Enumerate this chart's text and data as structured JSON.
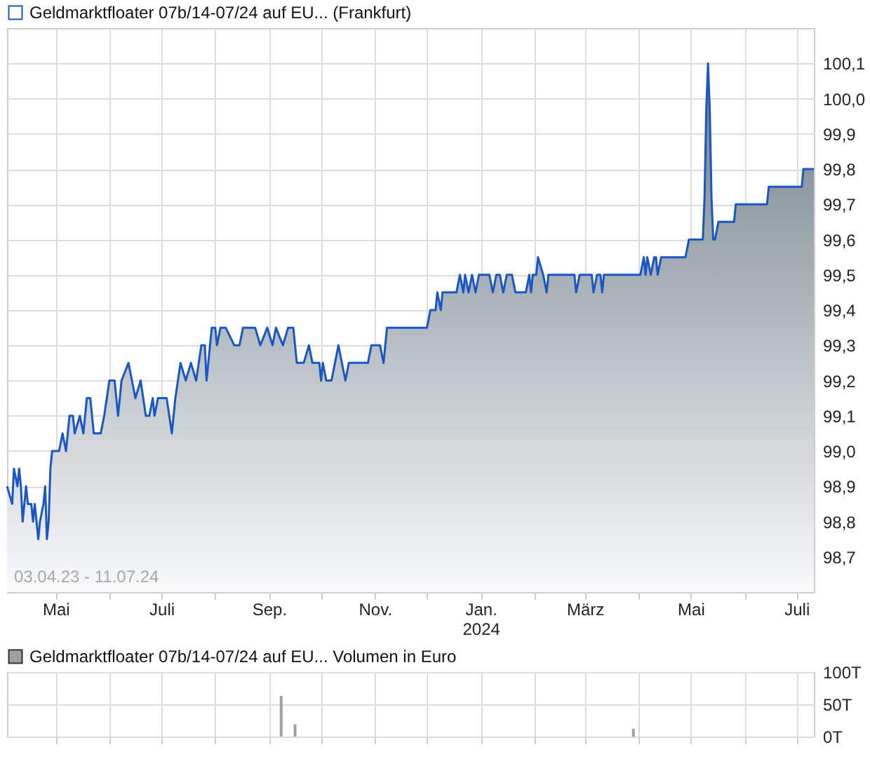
{
  "chart_data": [
    {
      "type": "area",
      "legend": "top",
      "grid": true,
      "annotations": [
        "03.04.23 - 11.07.24"
      ],
      "xlim": [
        "2023-04-03",
        "2024-07-11"
      ],
      "ylim": [
        98.6,
        100.2
      ],
      "xticks": [
        {
          "value": "2023-05-01",
          "label": "Mai"
        },
        {
          "value": "2023-06-01",
          "label": null
        },
        {
          "value": "2023-07-01",
          "label": "Juli"
        },
        {
          "value": "2023-08-01",
          "label": null
        },
        {
          "value": "2023-09-01",
          "label": "Sep."
        },
        {
          "value": "2023-10-01",
          "label": null
        },
        {
          "value": "2023-11-01",
          "label": "Nov."
        },
        {
          "value": "2023-12-01",
          "label": null
        },
        {
          "value": "2024-01-01",
          "label": "Jan.\n2024"
        },
        {
          "value": "2024-02-01",
          "label": null
        },
        {
          "value": "2024-03-01",
          "label": "März"
        },
        {
          "value": "2024-04-01",
          "label": null
        },
        {
          "value": "2024-05-01",
          "label": "Mai"
        },
        {
          "value": "2024-06-01",
          "label": null
        },
        {
          "value": "2024-07-01",
          "label": "Juli"
        }
      ],
      "yticks": [
        {
          "value": 98.7,
          "label": "98,7"
        },
        {
          "value": 98.8,
          "label": "98,8"
        },
        {
          "value": 98.9,
          "label": "98,9"
        },
        {
          "value": 99.0,
          "label": "99,0"
        },
        {
          "value": 99.1,
          "label": "99,1"
        },
        {
          "value": 99.2,
          "label": "99,2"
        },
        {
          "value": 99.3,
          "label": "99,3"
        },
        {
          "value": 99.4,
          "label": "99,4"
        },
        {
          "value": 99.5,
          "label": "99,5"
        },
        {
          "value": 99.6,
          "label": "99,6"
        },
        {
          "value": 99.7,
          "label": "99,7"
        },
        {
          "value": 99.8,
          "label": "99,8"
        },
        {
          "value": 99.9,
          "label": "99,9"
        },
        {
          "value": 100.0,
          "label": "100,0"
        },
        {
          "value": 100.1,
          "label": "100,1"
        }
      ],
      "x": [
        "2023-04-03",
        "2023-04-06",
        "2023-04-07",
        "2023-04-09",
        "2023-04-10",
        "2023-04-11",
        "2023-04-12",
        "2023-04-14",
        "2023-04-15",
        "2023-04-17",
        "2023-04-18",
        "2023-04-19",
        "2023-04-21",
        "2023-04-22",
        "2023-04-24",
        "2023-04-25",
        "2023-04-26",
        "2023-04-27",
        "2023-04-28",
        "2023-04-29",
        "2023-05-03",
        "2023-05-05",
        "2023-05-07",
        "2023-05-09",
        "2023-05-11",
        "2023-05-12",
        "2023-05-15",
        "2023-05-17",
        "2023-05-19",
        "2023-05-21",
        "2023-05-23",
        "2023-05-25",
        "2023-05-27",
        "2023-05-29",
        "2023-06-01",
        "2023-06-04",
        "2023-06-06",
        "2023-06-08",
        "2023-06-12",
        "2023-06-14",
        "2023-06-16",
        "2023-06-19",
        "2023-06-22",
        "2023-06-24",
        "2023-06-26",
        "2023-06-27",
        "2023-06-29",
        "2023-07-04",
        "2023-07-07",
        "2023-07-09",
        "2023-07-12",
        "2023-07-15",
        "2023-07-18",
        "2023-07-21",
        "2023-07-24",
        "2023-07-26",
        "2023-07-27",
        "2023-07-30",
        "2023-08-01",
        "2023-08-02",
        "2023-08-04",
        "2023-08-07",
        "2023-08-12",
        "2023-08-15",
        "2023-08-17",
        "2023-08-24",
        "2023-08-27",
        "2023-08-31",
        "2023-09-03",
        "2023-09-05",
        "2023-09-09",
        "2023-09-12",
        "2023-09-15",
        "2023-09-17",
        "2023-09-21",
        "2023-09-24",
        "2023-09-26",
        "2023-09-30",
        "2023-10-01",
        "2023-10-02",
        "2023-10-04",
        "2023-10-07",
        "2023-10-09",
        "2023-10-11",
        "2023-10-13",
        "2023-10-15",
        "2023-10-17",
        "2023-10-28",
        "2023-10-30",
        "2023-11-04",
        "2023-11-06",
        "2023-11-08",
        "2023-11-10",
        "2023-12-01",
        "2023-12-03",
        "2023-12-06",
        "2023-12-07",
        "2023-12-09",
        "2023-12-10",
        "2023-12-18",
        "2023-12-20",
        "2023-12-22",
        "2023-12-23",
        "2023-12-25",
        "2023-12-27",
        "2023-12-29",
        "2023-12-31",
        "2024-01-06",
        "2024-01-08",
        "2024-01-10",
        "2024-01-12",
        "2024-01-14",
        "2024-01-16",
        "2024-01-19",
        "2024-01-21",
        "2024-01-27",
        "2024-01-29",
        "2024-01-30",
        "2024-01-31",
        "2024-02-02",
        "2024-02-03",
        "2024-02-06",
        "2024-02-08",
        "2024-02-09",
        "2024-02-24",
        "2024-02-25",
        "2024-02-27",
        "2024-03-05",
        "2024-03-06",
        "2024-03-08",
        "2024-03-10",
        "2024-03-11",
        "2024-03-12",
        "2024-04-02",
        "2024-04-04",
        "2024-04-05",
        "2024-04-06",
        "2024-04-08",
        "2024-04-10",
        "2024-04-11",
        "2024-04-12",
        "2024-04-14",
        "2024-04-28",
        "2024-04-30",
        "2024-05-08",
        "2024-05-09",
        "2024-05-10",
        "2024-05-11",
        "2024-05-12",
        "2024-05-13",
        "2024-05-14",
        "2024-05-15",
        "2024-05-17",
        "2024-05-26",
        "2024-05-27",
        "2024-06-14",
        "2024-06-15",
        "2024-07-04",
        "2024-07-05",
        "2024-07-11"
      ],
      "series": [
        {
          "name": "Geldmarktfloater 07b/14-07/24 auf EU... (Frankfurt)",
          "color": "#1a56c4",
          "values": [
            98.9,
            98.85,
            98.95,
            98.9,
            98.95,
            98.9,
            98.8,
            98.9,
            98.85,
            98.85,
            98.8,
            98.85,
            98.75,
            98.8,
            98.85,
            98.9,
            98.75,
            98.8,
            98.95,
            99.0,
            99.0,
            99.05,
            99.0,
            99.1,
            99.1,
            99.05,
            99.1,
            99.05,
            99.15,
            99.15,
            99.05,
            99.05,
            99.05,
            99.1,
            99.2,
            99.2,
            99.1,
            99.2,
            99.25,
            99.2,
            99.15,
            99.2,
            99.1,
            99.1,
            99.15,
            99.1,
            99.15,
            99.15,
            99.05,
            99.15,
            99.25,
            99.2,
            99.25,
            99.2,
            99.3,
            99.3,
            99.2,
            99.35,
            99.35,
            99.3,
            99.35,
            99.35,
            99.3,
            99.3,
            99.35,
            99.35,
            99.3,
            99.35,
            99.3,
            99.35,
            99.3,
            99.35,
            99.35,
            99.25,
            99.25,
            99.3,
            99.25,
            99.25,
            99.2,
            99.25,
            99.2,
            99.2,
            99.25,
            99.3,
            99.25,
            99.2,
            99.25,
            99.25,
            99.3,
            99.3,
            99.25,
            99.35,
            99.35,
            99.35,
            99.4,
            99.4,
            99.45,
            99.4,
            99.45,
            99.45,
            99.5,
            99.45,
            99.5,
            99.45,
            99.5,
            99.45,
            99.5,
            99.5,
            99.45,
            99.5,
            99.5,
            99.45,
            99.5,
            99.5,
            99.45,
            99.45,
            99.5,
            99.45,
            99.5,
            99.5,
            99.55,
            99.5,
            99.45,
            99.5,
            99.5,
            99.45,
            99.5,
            99.5,
            99.45,
            99.5,
            99.5,
            99.45,
            99.5,
            99.5,
            99.55,
            99.5,
            99.55,
            99.5,
            99.55,
            99.55,
            99.5,
            99.55,
            99.55,
            99.6,
            99.6,
            99.72,
            99.97,
            100.1,
            99.97,
            99.72,
            99.6,
            99.6,
            99.65,
            99.65,
            99.7,
            99.7,
            99.75,
            99.75,
            99.8,
            99.8
          ]
        }
      ]
    },
    {
      "type": "bar",
      "legend": "top",
      "grid": true,
      "tick_labels": "y",
      "xlim": [
        "2023-04-03",
        "2024-07-11"
      ],
      "ylim": [
        0,
        100
      ],
      "xticks": [
        "2023-05-01",
        "2023-06-01",
        "2023-07-01",
        "2023-08-01",
        "2023-09-01",
        "2023-10-01",
        "2023-11-01",
        "2023-12-01",
        "2024-01-01",
        "2024-02-01",
        "2024-03-01",
        "2024-04-01",
        "2024-05-01",
        "2024-06-01",
        "2024-07-01"
      ],
      "yticks": [
        {
          "value": 0,
          "label": "0T"
        },
        {
          "value": 50,
          "label": "50T"
        },
        {
          "value": 100,
          "label": "100T"
        }
      ],
      "x": [
        "2023-09-08",
        "2023-09-16",
        "2024-03-29"
      ],
      "series": [
        {
          "name": "Geldmarktfloater 07b/14-07/24 auf EU... Volumen in Euro",
          "color": "#a0a0a0",
          "values": [
            63,
            19,
            12
          ]
        }
      ]
    }
  ]
}
